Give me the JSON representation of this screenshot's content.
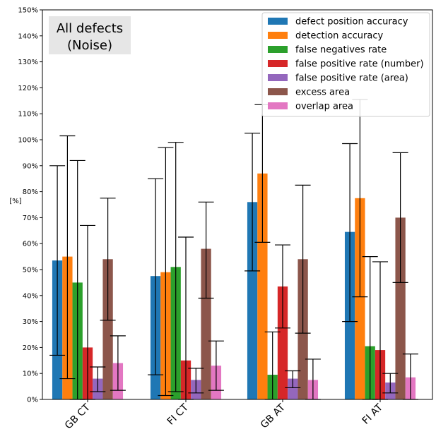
{
  "chart_data": {
    "type": "bar",
    "ylabel": "[%]",
    "ylim": [
      0,
      150
    ],
    "yticks": [
      "0%",
      "10%",
      "20%",
      "30%",
      "40%",
      "50%",
      "60%",
      "70%",
      "80%",
      "90%",
      "100%",
      "110%",
      "120%",
      "130%",
      "140%",
      "150%"
    ],
    "categories": [
      "GB CT",
      "FI CT",
      "GB AT",
      "FI AT"
    ],
    "annotation": [
      "All defects",
      "(Noise)"
    ],
    "legend_position": "top-right",
    "grid": false,
    "series": [
      {
        "name": "defect position accuracy",
        "color": "#1f77b4",
        "values": [
          53.5,
          47.5,
          76,
          64.5
        ],
        "err_low": [
          17,
          9.5,
          49.5,
          30
        ],
        "err_high": [
          90,
          85,
          102.5,
          98.5
        ]
      },
      {
        "name": "detection accuracy",
        "color": "#ff7f0e",
        "values": [
          55,
          49,
          87,
          77.5
        ],
        "err_low": [
          8,
          1.5,
          60.5,
          39.5
        ],
        "err_high": [
          101.5,
          97,
          113.5,
          115.5
        ]
      },
      {
        "name": "false negatives rate",
        "color": "#2ca02c",
        "values": [
          45,
          51,
          9.5,
          20.5
        ],
        "err_low": [
          0,
          3,
          0,
          0
        ],
        "err_high": [
          92,
          99,
          26,
          55
        ]
      },
      {
        "name": "false positive rate (number)",
        "color": "#d62728",
        "values": [
          20,
          15,
          43.5,
          19
        ],
        "err_low": [
          0,
          0,
          27.5,
          0
        ],
        "err_high": [
          67,
          62.5,
          59.5,
          53
        ]
      },
      {
        "name": "false positive rate (area)",
        "color": "#9467bd",
        "values": [
          8,
          7.5,
          8,
          6.5
        ],
        "err_low": [
          3,
          2.5,
          4.5,
          2.5
        ],
        "err_high": [
          12.5,
          12,
          11,
          10
        ]
      },
      {
        "name": "excess area",
        "color": "#8c564b",
        "values": [
          54,
          58,
          54,
          70
        ],
        "err_low": [
          30.5,
          39,
          25.5,
          45
        ],
        "err_high": [
          77.5,
          76,
          82.5,
          95
        ]
      },
      {
        "name": "overlap area",
        "color": "#e377c2",
        "values": [
          14,
          13,
          7.5,
          8.5
        ],
        "err_low": [
          3.5,
          3.5,
          0,
          0
        ],
        "err_high": [
          24.5,
          22.5,
          15.5,
          17.5
        ]
      }
    ]
  }
}
